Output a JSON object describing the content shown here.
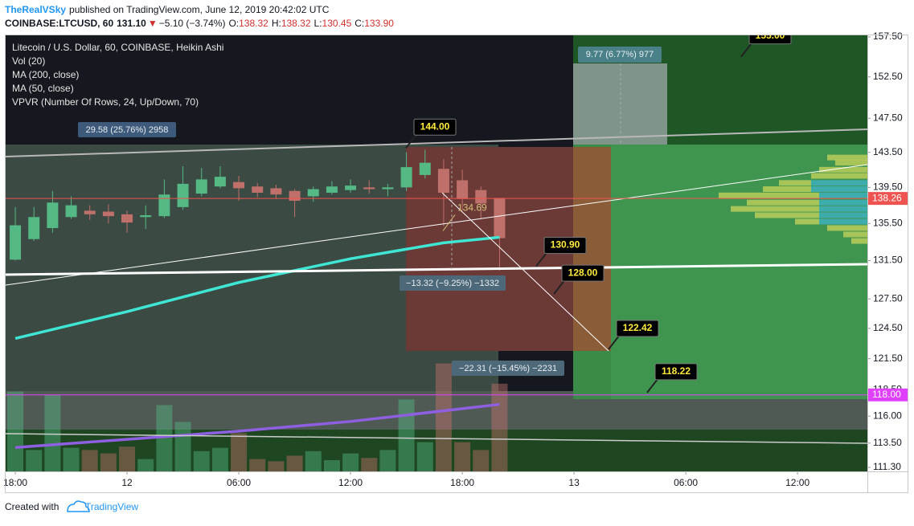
{
  "header": {
    "author": "TheRealVSky",
    "published": "published on TradingView.com, June 12, 2019 20:42:02 UTC",
    "symbol": "COINBASE:LTCUSD, 60",
    "last": "131.10",
    "arrow": "▼",
    "change": "−5.10 (−3.74%)",
    "ohlc": [
      {
        "key": "O:",
        "value": "138.32"
      },
      {
        "key": "H:",
        "value": "138.32"
      },
      {
        "key": "L:",
        "value": "130.45"
      },
      {
        "key": "C:",
        "value": "133.90"
      }
    ]
  },
  "footer": {
    "text": "Created with",
    "brand": "TradingView"
  },
  "chart_data": {
    "type": "candlestick",
    "title": "Litecoin / U.S. Dollar, 60, COINBASE, Heikin Ashi",
    "volume_name": "Vol (20)",
    "x": [
      0,
      1,
      2,
      3,
      4,
      5,
      6,
      7,
      8,
      9,
      10,
      11,
      12,
      13,
      14,
      15,
      16,
      17,
      18,
      19,
      20,
      21,
      22,
      23,
      24,
      25,
      26
    ],
    "open": [
      131.6,
      133.8,
      135.0,
      136.2,
      136.9,
      136.8,
      136.5,
      136.2,
      136.3,
      137.3,
      138.8,
      139.6,
      140.1,
      139.6,
      139.4,
      139.1,
      138.5,
      138.9,
      139.2,
      139.5,
      139.3,
      139.5,
      140.9,
      141.6,
      140.3,
      139.2,
      138.32
    ],
    "high": [
      137.3,
      137.3,
      139.1,
      138.5,
      137.5,
      137.6,
      136.9,
      137.5,
      140.4,
      141.9,
      141.7,
      141.9,
      140.8,
      140.0,
      139.8,
      139.3,
      139.6,
      140.2,
      140.4,
      140.3,
      139.9,
      143.5,
      143.8,
      142.7,
      141.5,
      139.6,
      138.32
    ],
    "low": [
      131.5,
      133.6,
      134.5,
      136.0,
      135.9,
      135.5,
      134.5,
      134.9,
      136.1,
      137.0,
      138.5,
      139.4,
      138.0,
      138.4,
      138.2,
      136.2,
      137.9,
      138.7,
      138.9,
      138.8,
      138.5,
      139.1,
      140.5,
      135.2,
      137.0,
      136.0,
      130.45
    ],
    "close": [
      135.3,
      136.2,
      137.8,
      137.5,
      136.5,
      136.3,
      135.6,
      136.4,
      138.7,
      139.9,
      140.4,
      140.7,
      139.4,
      138.9,
      138.7,
      138.0,
      139.3,
      139.6,
      139.7,
      139.3,
      139.5,
      141.8,
      142.3,
      138.9,
      138.2,
      137.7,
      133.9
    ],
    "up_color": "#55b985",
    "down_color": "#c0706a",
    "volume": [
      71,
      19,
      68,
      21,
      19,
      16,
      22,
      11,
      59,
      44,
      18,
      21,
      34,
      11,
      9,
      14,
      18,
      10,
      16,
      12,
      19,
      64,
      26,
      96,
      26,
      19,
      78
    ],
    "volume_ylim": [
      0,
      100
    ],
    "series": [
      {
        "name": "MA (200, close)",
        "color": "#8e5fe0",
        "x": [
          0,
          12,
          18,
          26
        ],
        "values": [
          113.1,
          114.6,
          115.5,
          117.1
        ]
      },
      {
        "name": "MA (50, close)",
        "color": "#3fe6d4",
        "x": [
          0,
          6,
          12,
          18,
          23,
          26
        ],
        "values": [
          123.5,
          126.2,
          129.2,
          131.7,
          133.4,
          134.0
        ]
      }
    ],
    "vpvr": {
      "name": "VPVR (Number Of Rows, 24, Up/Down, 70)",
      "prices": [
        142.9,
        142.3,
        141.5,
        140.8,
        140.0,
        139.3,
        138.6,
        137.8,
        137.1,
        136.4,
        135.7,
        135.0,
        134.3,
        133.6
      ],
      "up": [
        0,
        0,
        0,
        0,
        70,
        70,
        60,
        60,
        60,
        60,
        60,
        0,
        0,
        0
      ],
      "down": [
        50,
        40,
        60,
        70,
        40,
        60,
        125,
        90,
        110,
        80,
        30,
        50,
        30,
        20
      ],
      "xlim": [
        0,
        200
      ],
      "up_color": "#3fb0c4",
      "down_color": "#c2cf5a"
    },
    "ylim": [
      110.94,
      157.7
    ],
    "log_scale": true,
    "yticks": [
      {
        "value": 111.3,
        "label": "111.30"
      },
      {
        "value": 113.5,
        "label": "113.50"
      },
      {
        "value": 116,
        "label": "116.00"
      },
      {
        "value": 118.5,
        "label": "118.50"
      },
      {
        "value": 121.5,
        "label": "121.50"
      },
      {
        "value": 124.5,
        "label": "124.50"
      },
      {
        "value": 127.5,
        "label": "127.50"
      },
      {
        "value": 131.5,
        "label": "131.50"
      },
      {
        "value": 135.5,
        "label": "135.50"
      },
      {
        "value": 139.5,
        "label": "139.50"
      },
      {
        "value": 143.5,
        "label": "143.50"
      },
      {
        "value": 147.5,
        "label": "147.50"
      },
      {
        "value": 152.5,
        "label": "152.50"
      },
      {
        "value": 157.5,
        "label": "157.50"
      }
    ],
    "xlim": [
      -0.52,
      45.75
    ],
    "xticks": [
      {
        "value": 0,
        "label": "18:00"
      },
      {
        "value": 6,
        "label": "12"
      },
      {
        "value": 12,
        "label": "06:00"
      },
      {
        "value": 18,
        "label": "12:00"
      },
      {
        "value": 24,
        "label": "18:00"
      },
      {
        "value": 30,
        "label": "13"
      },
      {
        "value": 36,
        "label": "06:00"
      },
      {
        "value": 42,
        "label": "12:00"
      }
    ],
    "price_lines": [
      {
        "value": 138.26,
        "label": "138.26",
        "color": "#ef5350"
      },
      {
        "value": 118,
        "label": "118.00",
        "color": "#e040fb"
      }
    ],
    "annotations": [
      {
        "value": 144,
        "label": "144.00"
      },
      {
        "value": 130.9,
        "label": "130.90"
      },
      {
        "value": 128,
        "label": "128.00"
      },
      {
        "value": 122.42,
        "label": "122.42"
      },
      {
        "value": 118.22,
        "label": "118.22"
      },
      {
        "value": 155,
        "label": "155.00"
      }
    ],
    "cursor_label": {
      "value": 134.69,
      "label": "134.69"
    },
    "measures": [
      "29.58 (25.76%) 2958",
      "9.77 (6.77%) 977",
      "−13.32 (−9.25%) −1332",
      "−22.31 (−15.45%) −2231"
    ]
  }
}
